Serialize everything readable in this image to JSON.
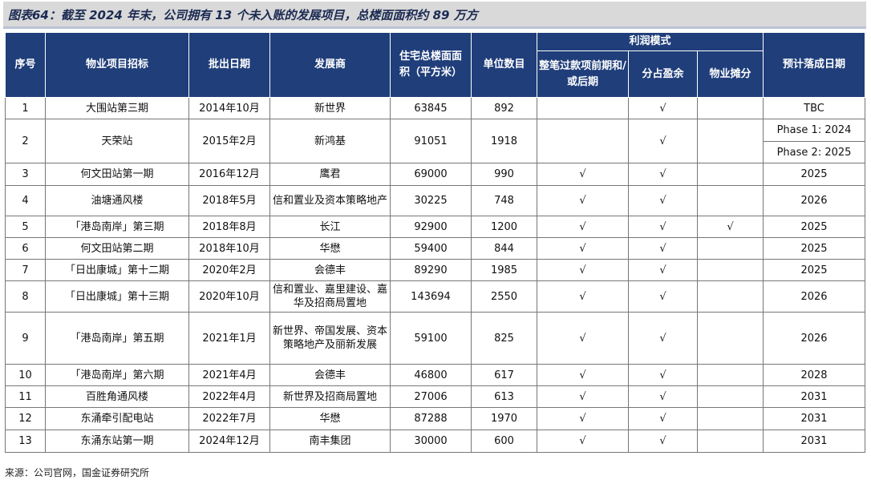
{
  "title": "图表64：截至 2024 年末，公司拥有 13 个未入账的发展项目，总楼面面积约 89 万方",
  "headers": {
    "seq": "序号",
    "project": "物业项目招标",
    "tender_date": "批出日期",
    "developer": "发展商",
    "area": "住宅总楼面面积（平方米）",
    "units": "单位数目",
    "profit_mode": "利润模式",
    "profit_lump": "整笔过款项前期和/或后期",
    "profit_share": "分占盈余",
    "profit_property": "物业摊分",
    "completion": "预计落成日期"
  },
  "rows": [
    {
      "seq": "1",
      "project": "大围站第三期",
      "date": "2014年10月",
      "developer": "新世界",
      "area": "63845",
      "units": "892",
      "lump": "",
      "share": "√",
      "prop": "",
      "completion": "TBC"
    },
    {
      "seq": "2",
      "project": "天荣站",
      "date": "2015年2月",
      "developer": "新鸿基",
      "area": "91051",
      "units": "1918",
      "lump": "",
      "share": "√",
      "prop": "",
      "completion": "Phase 1: 2024",
      "completion2": "Phase 2: 2025"
    },
    {
      "seq": "3",
      "project": "何文田站第一期",
      "date": "2016年12月",
      "developer": "鹰君",
      "area": "69000",
      "units": "990",
      "lump": "√",
      "share": "√",
      "prop": "",
      "completion": "2025"
    },
    {
      "seq": "4",
      "project": "油塘通风楼",
      "date": "2018年5月",
      "developer": "信和置业及资本策略地产",
      "area": "30225",
      "units": "748",
      "lump": "√",
      "share": "√",
      "prop": "",
      "completion": "2026"
    },
    {
      "seq": "5",
      "project": "「港岛南岸」第三期",
      "date": "2018年8月",
      "developer": "长江",
      "area": "92900",
      "units": "1200",
      "lump": "√",
      "share": "√",
      "prop": "√",
      "completion": "2025"
    },
    {
      "seq": "6",
      "project": "何文田站第二期",
      "date": "2018年10月",
      "developer": "华懋",
      "area": "59400",
      "units": "844",
      "lump": "√",
      "share": "√",
      "prop": "",
      "completion": "2025"
    },
    {
      "seq": "7",
      "project": "「日出康城」第十二期",
      "date": "2020年2月",
      "developer": "会德丰",
      "area": "89290",
      "units": "1985",
      "lump": "√",
      "share": "√",
      "prop": "",
      "completion": "2025"
    },
    {
      "seq": "8",
      "project": "「日出康城」第十三期",
      "date": "2020年10月",
      "developer": "信和置业、嘉里建设、嘉华及招商局置地",
      "area": "143694",
      "units": "2550",
      "lump": "√",
      "share": "√",
      "prop": "",
      "completion": "2026"
    },
    {
      "seq": "9",
      "project": "「港岛南岸」第五期",
      "date": "2021年1月",
      "developer": "新世界、帝国发展、资本策略地产及丽新发展",
      "area": "59100",
      "units": "825",
      "lump": "√",
      "share": "√",
      "prop": "",
      "completion": "2026"
    },
    {
      "seq": "10",
      "project": "「港岛南岸」第六期",
      "date": "2021年4月",
      "developer": "会德丰",
      "area": "46800",
      "units": "617",
      "lump": "√",
      "share": "√",
      "prop": "",
      "completion": "2028"
    },
    {
      "seq": "11",
      "project": "百胜角通风楼",
      "date": "2022年4月",
      "developer": "新世界及招商局置地",
      "area": "27006",
      "units": "613",
      "lump": "√",
      "share": "√",
      "prop": "",
      "completion": "2031"
    },
    {
      "seq": "12",
      "project": "东涌牵引配电站",
      "date": "2022年7月",
      "developer": "华懋",
      "area": "87288",
      "units": "1970",
      "lump": "√",
      "share": "√",
      "prop": "",
      "completion": "2031"
    },
    {
      "seq": "13",
      "project": "东涌东站第一期",
      "date": "2024年12月",
      "developer": "南丰集团",
      "area": "30000",
      "units": "600",
      "lump": "√",
      "share": "√",
      "prop": "",
      "completion": "2031"
    }
  ],
  "source": "来源：公司官网，国金证券研究所"
}
